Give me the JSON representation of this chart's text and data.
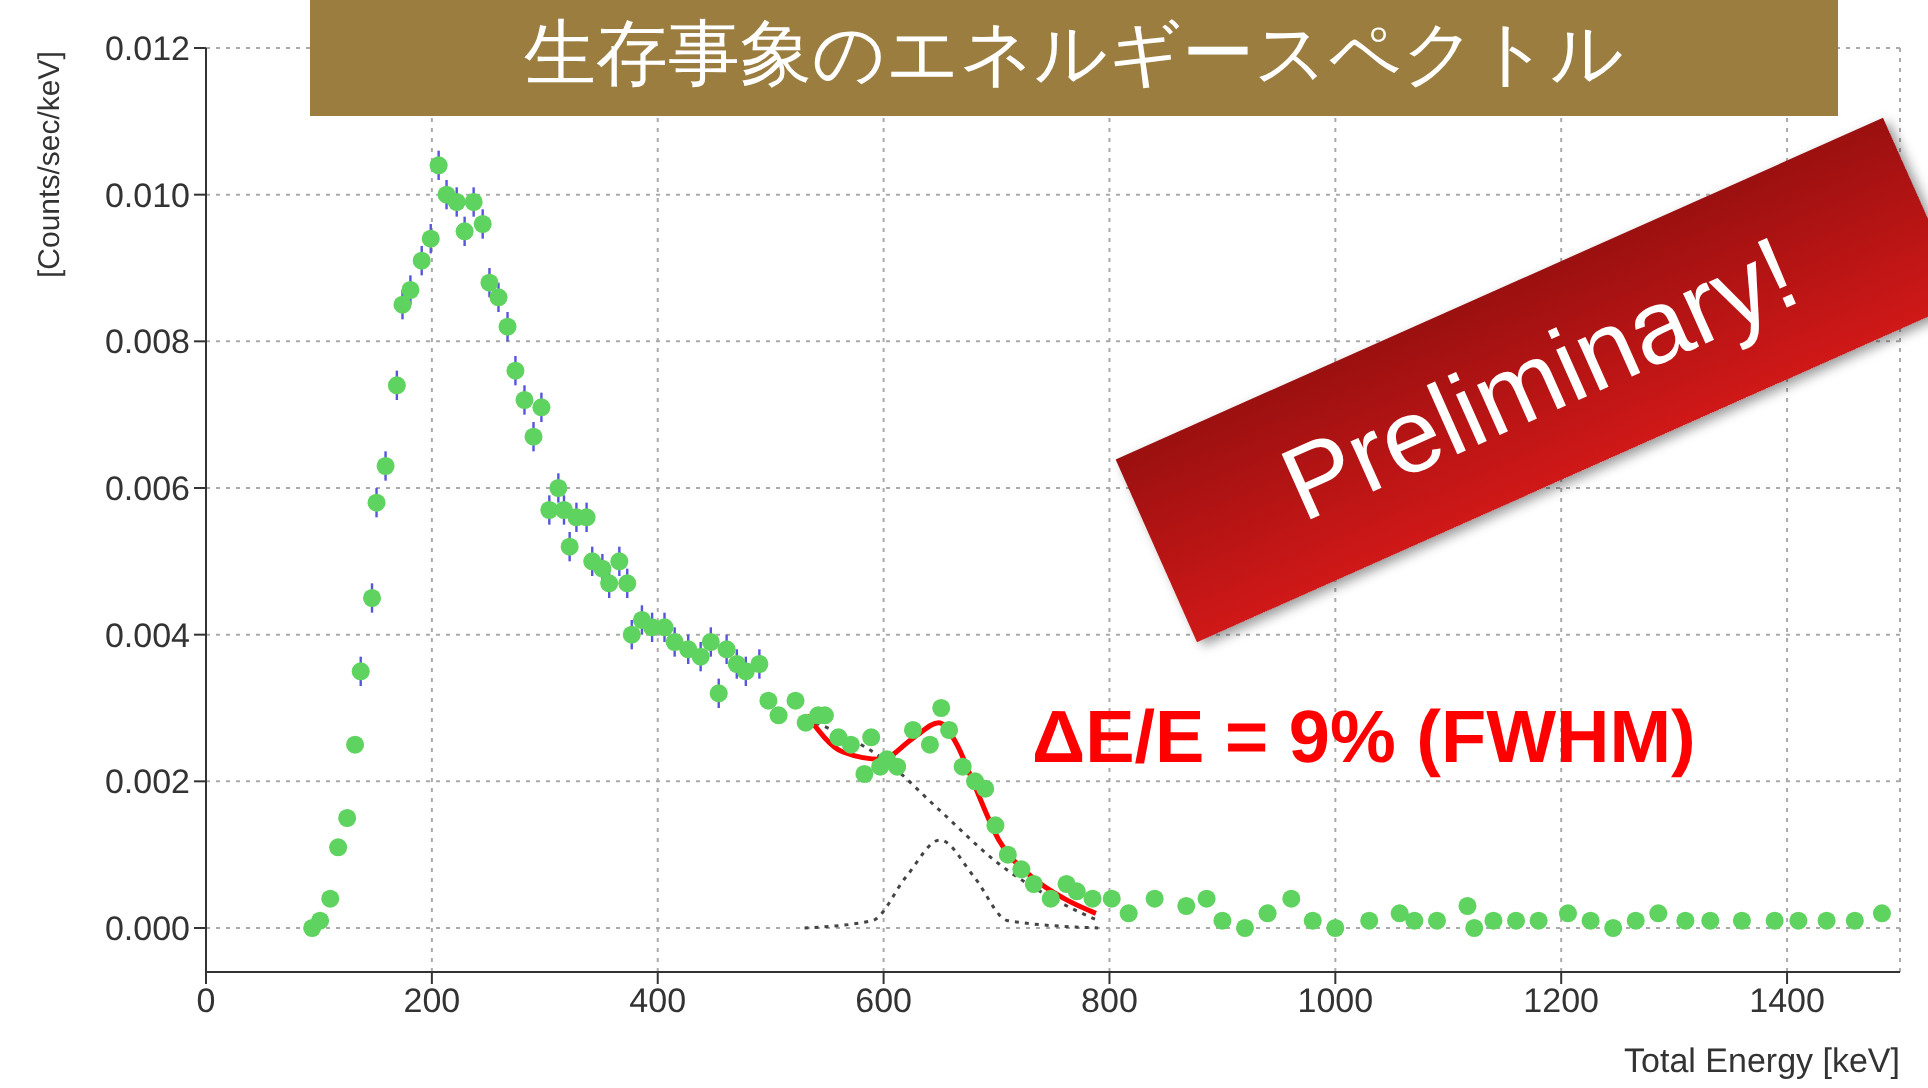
{
  "chart_data": {
    "type": "scatter",
    "title": "生存事象のエネルギースペクトル",
    "xlabel": "Total Energy [keV]",
    "ylabel": "[Counts/sec/keV]",
    "xlim": [
      0,
      1500
    ],
    "xticks": [
      0,
      200,
      400,
      600,
      800,
      1000,
      1200,
      1400
    ],
    "ylim": [
      -0.0006,
      0.012
    ],
    "yticks": [
      {
        "value": 0,
        "label": "0.000"
      },
      {
        "value": 0.002,
        "label": "0.002"
      },
      {
        "value": 0.004,
        "label": "0.004"
      },
      {
        "value": 0.006,
        "label": "0.006"
      },
      {
        "value": 0.008,
        "label": "0.008"
      },
      {
        "value": 0.01,
        "label": "0.010"
      },
      {
        "value": 0.012,
        "label": "0.012"
      }
    ],
    "grid": true,
    "legend": false,
    "annotations": [
      "ΔE/E = 9% (FWHM)",
      "Preliminary!"
    ],
    "series": [
      {
        "color": "#5fd35f",
        "marker": "circle",
        "x": [
          94,
          101,
          110,
          117,
          125,
          132,
          137,
          147,
          151,
          159,
          169,
          174,
          181,
          191,
          199,
          206,
          213,
          222,
          229,
          237,
          245,
          251,
          259,
          267,
          274,
          282,
          290,
          297,
          304,
          312,
          317,
          322,
          328,
          337,
          342,
          351,
          357,
          366,
          373,
          377,
          386,
          395,
          406,
          415,
          427,
          438,
          447,
          454,
          461,
          470,
          478,
          490,
          498,
          507,
          522,
          531,
          542,
          548,
          560,
          571,
          583,
          589,
          597,
          603,
          612,
          626,
          641,
          651,
          658,
          670,
          681,
          690,
          699,
          710,
          722,
          733,
          748,
          762,
          771,
          785,
          802,
          817,
          840,
          868,
          886,
          900,
          920,
          940,
          961,
          980,
          1000,
          1030,
          1057,
          1070,
          1090,
          1117,
          1123,
          1140,
          1160,
          1180,
          1206,
          1226,
          1246,
          1266,
          1286,
          1310,
          1332,
          1360,
          1389,
          1410,
          1435,
          1460,
          1484
        ],
        "values": [
          0,
          0.0001,
          0.0004,
          0.0011,
          0.0015,
          0.0025,
          0.0035,
          0.0045,
          0.0058,
          0.0063,
          0.0074,
          0.0085,
          0.0087,
          0.0091,
          0.0094,
          0.0104,
          0.01,
          0.0099,
          0.0095,
          0.0099,
          0.0096,
          0.0088,
          0.0086,
          0.0082,
          0.0076,
          0.0072,
          0.0067,
          0.0071,
          0.0057,
          0.006,
          0.0057,
          0.0052,
          0.0056,
          0.0056,
          0.005,
          0.0049,
          0.0047,
          0.005,
          0.0047,
          0.004,
          0.0042,
          0.0041,
          0.0041,
          0.0039,
          0.0038,
          0.0037,
          0.0039,
          0.0032,
          0.0038,
          0.0036,
          0.0035,
          0.0036,
          0.0031,
          0.0029,
          0.0031,
          0.0028,
          0.0029,
          0.0029,
          0.0026,
          0.0025,
          0.0021,
          0.0026,
          0.0022,
          0.0023,
          0.0022,
          0.0027,
          0.0025,
          0.003,
          0.0027,
          0.0022,
          0.002,
          0.0019,
          0.0014,
          0.001,
          0.0008,
          0.0006,
          0.0004,
          0.0006,
          0.0005,
          0.0004,
          0.0004,
          0.0002,
          0.0004,
          0.0003,
          0.0004,
          0.0001,
          0,
          0.0002,
          0.0004,
          0.0001,
          0,
          0.0001,
          0.0002,
          0.0001,
          0.0001,
          0.0003,
          0,
          0.0001,
          0.0001,
          0.0001,
          0.0002,
          0.0001,
          0,
          0.0001,
          0.0002,
          0.0001,
          0.0001,
          0.0001,
          0.0001,
          0.0001,
          0.0001,
          0.0001,
          0.0002
        ],
        "errors": [
          null,
          null,
          null,
          null,
          null,
          null,
          0.0002,
          0.0002,
          0.0002,
          0.0002,
          0.0002,
          0.0002,
          0.0002,
          0.0002,
          0.0002,
          0.0002,
          0.0002,
          0.0002,
          0.0002,
          0.0002,
          0.0002,
          0.0002,
          0.0002,
          0.0002,
          0.0002,
          0.0002,
          0.0002,
          0.0002,
          0.0002,
          0.0002,
          0.0002,
          0.0002,
          0.0002,
          0.0002,
          0.0002,
          0.0002,
          0.0002,
          0.0002,
          0.0002,
          0.0002,
          0.0002,
          0.0002,
          0.0002,
          0.0002,
          0.0002,
          0.0002,
          0.0002,
          0.0002,
          0.0002,
          0.0002,
          0.0002,
          0.0002,
          null,
          null,
          null,
          null,
          null,
          null,
          null,
          null,
          null,
          null,
          null,
          null,
          null,
          null,
          null,
          null,
          null,
          null,
          null,
          null,
          null,
          null,
          null,
          null,
          null,
          null,
          null,
          null,
          null,
          null,
          null,
          null,
          null,
          null,
          null,
          null,
          null,
          null,
          null,
          null,
          null,
          null,
          null,
          null,
          null,
          null,
          null,
          null,
          null,
          null,
          null,
          null,
          null,
          null,
          null,
          null,
          null,
          null,
          null,
          null,
          null
        ]
      },
      {
        "type": "line",
        "color": "#ff0000",
        "line_style": "solid",
        "marker": "none",
        "x": [
          532,
          564,
          598,
          627,
          649,
          665,
          679,
          702,
          731,
          760,
          788
        ],
        "values": [
          0.0029,
          0.0024,
          0.0023,
          0.0026,
          0.0028,
          0.0025,
          0.002,
          0.0012,
          0.0007,
          0.0004,
          0.0002
        ]
      },
      {
        "type": "line",
        "color": "#444444",
        "line_style": "dotted",
        "marker": "none",
        "x": [
          540,
          600,
          650,
          700,
          750,
          790
        ],
        "values": [
          0.0028,
          0.0023,
          0.0016,
          0.0009,
          0.0004,
          0.0001
        ]
      },
      {
        "type": "line",
        "color": "#444444",
        "line_style": "dotted",
        "marker": "none",
        "x": [
          530,
          590,
          620,
          650,
          680,
          710,
          790
        ],
        "values": [
          0,
          0.0001,
          0.0007,
          0.0012,
          0.0007,
          0.0001,
          0
        ]
      }
    ]
  }
}
